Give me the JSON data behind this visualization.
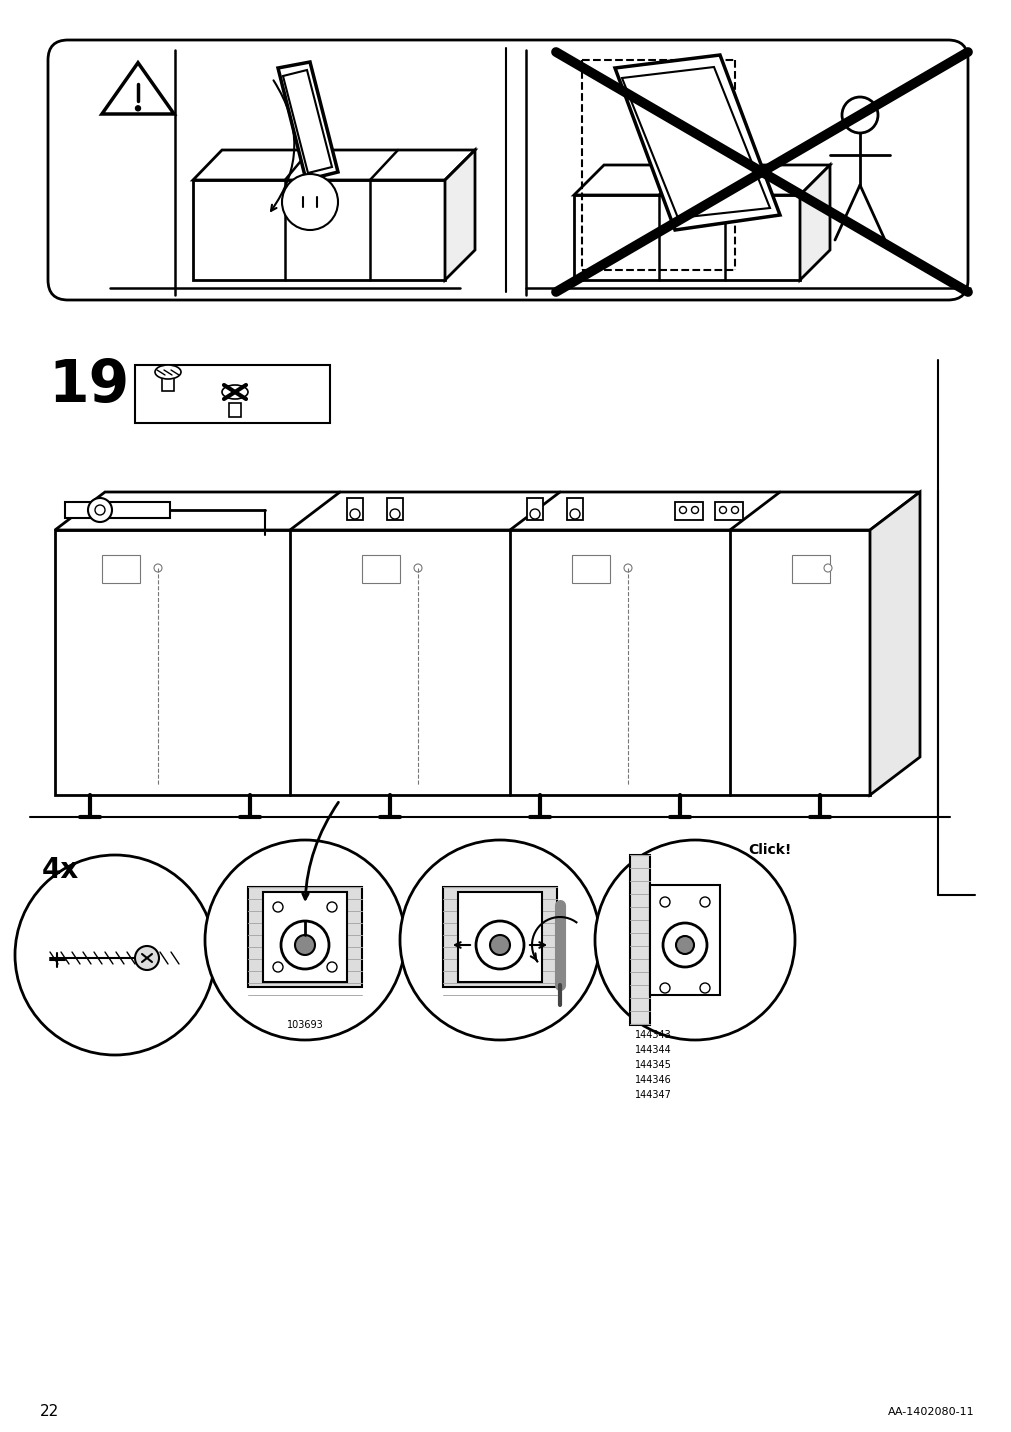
{
  "page_number": "22",
  "doc_id": "AA-1402080-11",
  "step_number": "19",
  "bg_color": "#ffffff",
  "line_color": "#000000",
  "warning_text": "Click!",
  "parts_label": "4x",
  "part_numbers": [
    "144343",
    "144344",
    "144345",
    "144346",
    "144347"
  ],
  "part_code": "103693",
  "fig_width": 10.12,
  "fig_height": 14.32
}
